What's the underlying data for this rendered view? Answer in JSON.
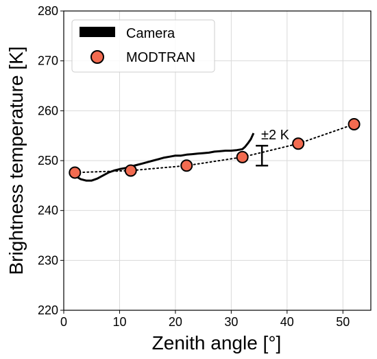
{
  "chart_data": {
    "type": "scatter",
    "title": "",
    "xlabel": "Zenith angle [°]",
    "ylabel": "Brightness temperature [K]",
    "xlim": [
      0,
      55
    ],
    "ylim": [
      220,
      280
    ],
    "xticks": [
      0,
      10,
      20,
      30,
      40,
      50
    ],
    "yticks": [
      220,
      230,
      240,
      250,
      260,
      270,
      280
    ],
    "grid": true,
    "legend_placement": "top-left",
    "legend": [
      "Camera",
      "MODTRAN"
    ],
    "series": [
      {
        "name": "Camera",
        "kind": "line",
        "color": "#000000",
        "x": [
          2.0,
          3.0,
          4.0,
          5.0,
          6.0,
          7.0,
          8.0,
          9.0,
          10.0,
          11.0,
          12.0,
          13.0,
          14.0,
          15.0,
          16.0,
          17.0,
          18.0,
          19.0,
          20.0,
          21.0,
          22.0,
          23.0,
          24.0,
          25.0,
          26.0,
          27.0,
          28.0,
          29.0,
          30.0,
          31.0,
          32.0,
          32.5,
          33.0,
          33.5,
          34.0
        ],
        "y": [
          247.0,
          246.3,
          246.0,
          246.0,
          246.4,
          247.0,
          247.6,
          248.0,
          248.3,
          248.5,
          248.8,
          249.1,
          249.4,
          249.7,
          250.0,
          250.3,
          250.6,
          250.8,
          251.0,
          251.0,
          251.2,
          251.3,
          251.4,
          251.5,
          251.6,
          251.8,
          251.9,
          252.0,
          252.0,
          252.1,
          252.3,
          252.8,
          253.5,
          254.3,
          255.5
        ]
      },
      {
        "name": "MODTRAN",
        "kind": "scatter",
        "color": "#f26b50",
        "x": [
          2,
          12,
          22,
          32,
          42,
          52
        ],
        "y": [
          247.6,
          248.0,
          249.0,
          250.7,
          253.4,
          257.3
        ]
      }
    ],
    "errorbar": {
      "x": 35.5,
      "y": 251.0,
      "half_range": 2
    },
    "annotation": "±2 K"
  }
}
